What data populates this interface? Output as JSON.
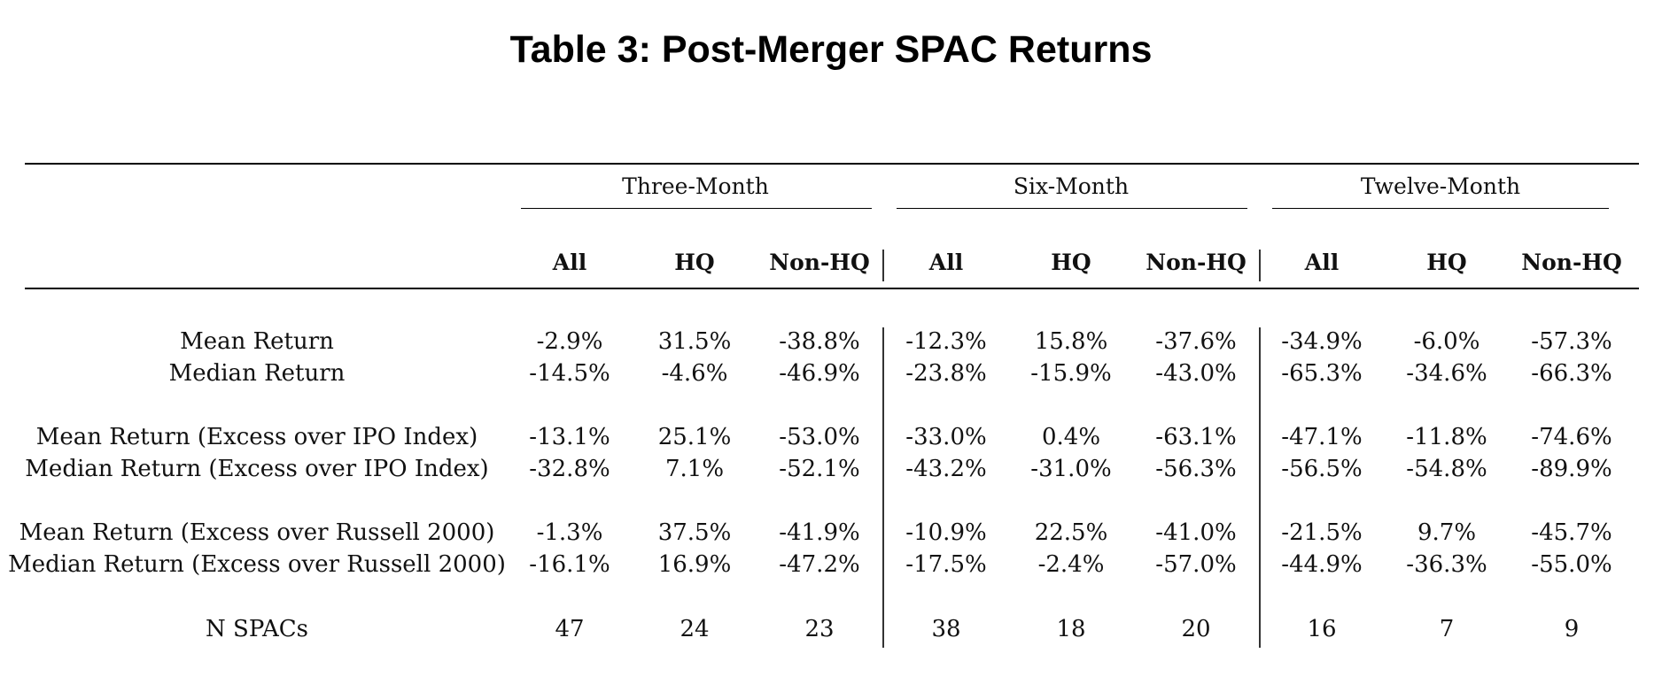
{
  "title": "Table 3: Post-Merger SPAC Returns",
  "groups": [
    {
      "label": "Three-Month",
      "subcolumns": [
        "All",
        "HQ",
        "Non-HQ"
      ]
    },
    {
      "label": "Six-Month",
      "subcolumns": [
        "All",
        "HQ",
        "Non-HQ"
      ]
    },
    {
      "label": "Twelve-Month",
      "subcolumns": [
        "All",
        "HQ",
        "Non-HQ"
      ]
    }
  ],
  "rows": [
    {
      "label": "Mean Return",
      "values": [
        "-2.9%",
        "31.5%",
        "-38.8%",
        "-12.3%",
        "15.8%",
        "-37.6%",
        "-34.9%",
        "-6.0%",
        "-57.3%"
      ]
    },
    {
      "label": "Median Return",
      "values": [
        "-14.5%",
        "-4.6%",
        "-46.9%",
        "-23.8%",
        "-15.9%",
        "-43.0%",
        "-65.3%",
        "-34.6%",
        "-66.3%"
      ]
    },
    {
      "label": "Mean Return (Excess over IPO Index)",
      "values": [
        "-13.1%",
        "25.1%",
        "-53.0%",
        "-33.0%",
        "0.4%",
        "-63.1%",
        "-47.1%",
        "-11.8%",
        "-74.6%"
      ]
    },
    {
      "label": "Median Return (Excess over IPO Index)",
      "values": [
        "-32.8%",
        "7.1%",
        "-52.1%",
        "-43.2%",
        "-31.0%",
        "-56.3%",
        "-56.5%",
        "-54.8%",
        "-89.9%"
      ]
    },
    {
      "label": "Mean Return (Excess over Russell 2000)",
      "values": [
        "-1.3%",
        "37.5%",
        "-41.9%",
        "-10.9%",
        "22.5%",
        "-41.0%",
        "-21.5%",
        "9.7%",
        "-45.7%"
      ]
    },
    {
      "label": "Median Return (Excess over Russell 2000)",
      "values": [
        "-16.1%",
        "16.9%",
        "-47.2%",
        "-17.5%",
        "-2.4%",
        "-57.0%",
        "-44.9%",
        "-36.3%",
        "-55.0%"
      ]
    },
    {
      "label": "N SPACs",
      "values": [
        "47",
        "24",
        "23",
        "38",
        "18",
        "20",
        "16",
        "7",
        "9"
      ]
    }
  ]
}
